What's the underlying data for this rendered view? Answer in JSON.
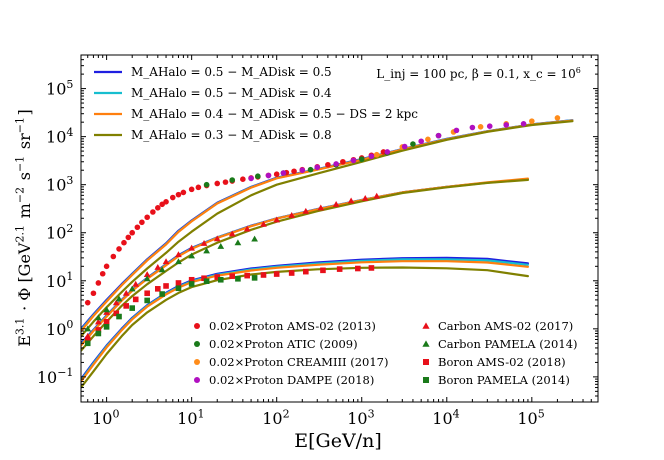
{
  "chart_data": {
    "type": "line",
    "title": "",
    "xlabel": "E[GeV/n]",
    "ylabel": "E^{3.1} · Φ [GeV^{2.1} m^{-2} s^{-1} sr^{-1}]",
    "x_scale": "log",
    "y_scale": "log",
    "xlim": [
      0.5,
      600000
    ],
    "ylim": [
      0.03,
      500000
    ],
    "x_ticks": [
      1,
      10,
      100,
      1000,
      10000,
      100000
    ],
    "x_tick_labels": [
      "10^0",
      "10^1",
      "10^2",
      "10^3",
      "10^4",
      "10^5"
    ],
    "y_ticks": [
      0.1,
      1,
      10,
      100,
      1000,
      10000,
      100000
    ],
    "y_tick_labels": [
      "10^-1",
      "10^0",
      "10^1",
      "10^2",
      "10^3",
      "10^4",
      "10^5"
    ],
    "annotation": "L_inj = 100 pc, β = 0.1, x_c = 10^6",
    "model_legend": [
      {
        "label": "M_AHalo = 0.5 − M_ADisk = 0.5",
        "color": "#1f1fe0"
      },
      {
        "label": "M_AHalo = 0.5 − M_ADisk = 0.4",
        "color": "#17becf"
      },
      {
        "label": "M_AHalo = 0.4 − M_ADisk = 0.5 − DS = 2 kpc",
        "color": "#ff7f0e"
      },
      {
        "label": "M_AHalo = 0.3 − M_ADisk = 0.8",
        "color": "#808000"
      }
    ],
    "data_legend": [
      {
        "label": "0.02×Proton AMS-02 (2013)",
        "color": "#e8101a",
        "marker": "circle"
      },
      {
        "label": "0.02×Proton ATIC (2009)",
        "color": "#1a7a1a",
        "marker": "circle"
      },
      {
        "label": "0.02×Proton CREAMIII (2017)",
        "color": "#ff8c1a",
        "marker": "circle"
      },
      {
        "label": "0.02×Proton DAMPE (2018)",
        "color": "#b010c0",
        "marker": "circle"
      },
      {
        "label": "Carbon AMS-02 (2017)",
        "color": "#e8101a",
        "marker": "triangle"
      },
      {
        "label": "Carbon PAMELA (2014)",
        "color": "#1a7a1a",
        "marker": "triangle"
      },
      {
        "label": "Boron AMS-02 (2018)",
        "color": "#e8101a",
        "marker": "square"
      },
      {
        "label": "Boron PAMELA (2014)",
        "color": "#1a7a1a",
        "marker": "square"
      }
    ],
    "model_series": [
      {
        "name": "proton-halo0.5-disk0.5",
        "group": "proton",
        "color": "#1f1fe0",
        "x": [
          0.5,
          0.7,
          1,
          1.5,
          2,
          3,
          5,
          7,
          10,
          20,
          50,
          100,
          300,
          1000,
          3000,
          10000,
          30000,
          100000,
          300000
        ],
        "y": [
          1.0,
          2.0,
          4.0,
          8.5,
          14,
          28,
          60,
          110,
          180,
          420,
          900,
          1400,
          2100,
          3400,
          5500,
          9000,
          13000,
          18000,
          22000
        ]
      },
      {
        "name": "proton-halo0.5-disk0.4",
        "group": "proton",
        "color": "#17becf",
        "x": [
          0.5,
          0.7,
          1,
          1.5,
          2,
          3,
          5,
          7,
          10,
          20,
          50,
          100,
          300,
          1000,
          3000,
          10000,
          30000,
          100000,
          300000
        ],
        "y": [
          0.95,
          1.9,
          3.8,
          8.1,
          13.5,
          27,
          58,
          106,
          175,
          410,
          880,
          1370,
          2070,
          3350,
          5450,
          8900,
          12900,
          17900,
          21800
        ]
      },
      {
        "name": "proton-halo0.4-disk0.5-DS2kpc",
        "group": "proton",
        "color": "#ff7f0e",
        "x": [
          0.5,
          0.7,
          1,
          1.5,
          2,
          3,
          5,
          7,
          10,
          20,
          50,
          100,
          300,
          1000,
          3000,
          10000,
          30000,
          100000,
          300000
        ],
        "y": [
          0.9,
          1.85,
          3.7,
          8.0,
          13.2,
          26.5,
          57,
          104,
          172,
          405,
          870,
          1360,
          2050,
          3300,
          5400,
          8800,
          12800,
          17800,
          21600
        ]
      },
      {
        "name": "proton-halo0.3-disk0.8",
        "group": "proton",
        "color": "#808000",
        "x": [
          0.5,
          0.7,
          1,
          1.5,
          2,
          3,
          5,
          7,
          10,
          20,
          50,
          100,
          300,
          1000,
          3000,
          10000,
          30000,
          100000,
          300000
        ],
        "y": [
          0.7,
          1.4,
          2.8,
          5.8,
          9.5,
          18,
          38,
          65,
          105,
          250,
          600,
          1000,
          1700,
          3000,
          5100,
          8600,
          12600,
          17500,
          21000
        ]
      },
      {
        "name": "carbon-halo0.5-disk0.5",
        "group": "carbon",
        "color": "#1f1fe0",
        "x": [
          0.5,
          0.7,
          1,
          1.5,
          2,
          3,
          5,
          7,
          10,
          20,
          50,
          100,
          300,
          1000,
          3000,
          10000,
          30000,
          90000
        ],
        "y": [
          0.5,
          0.95,
          1.9,
          4.0,
          6.5,
          11.5,
          22,
          34,
          48,
          80,
          140,
          200,
          310,
          480,
          690,
          900,
          1100,
          1300
        ]
      },
      {
        "name": "carbon-halo0.5-disk0.4",
        "group": "carbon",
        "color": "#17becf",
        "x": [
          0.5,
          0.7,
          1,
          1.5,
          2,
          3,
          5,
          7,
          10,
          20,
          50,
          100,
          300,
          1000,
          3000,
          10000,
          30000,
          90000
        ],
        "y": [
          0.47,
          0.92,
          1.85,
          3.9,
          6.3,
          11.2,
          21.5,
          33,
          47,
          79,
          138,
          198,
          308,
          478,
          688,
          898,
          1098,
          1295
        ]
      },
      {
        "name": "carbon-halo0.4-disk0.5-DS2kpc",
        "group": "carbon",
        "color": "#ff7f0e",
        "x": [
          0.5,
          0.7,
          1,
          1.5,
          2,
          3,
          5,
          7,
          10,
          20,
          50,
          100,
          300,
          1000,
          3000,
          10000,
          30000,
          90000
        ],
        "y": [
          0.45,
          0.9,
          1.8,
          3.85,
          6.2,
          11,
          21,
          32.5,
          46,
          78,
          137,
          197,
          306,
          476,
          690,
          905,
          1120,
          1340
        ]
      },
      {
        "name": "carbon-halo0.3-disk0.8",
        "group": "carbon",
        "color": "#808000",
        "x": [
          0.5,
          0.7,
          1,
          1.5,
          2,
          3,
          5,
          7,
          10,
          20,
          50,
          100,
          300,
          1000,
          3000,
          10000,
          30000,
          90000
        ],
        "y": [
          0.35,
          0.7,
          1.4,
          3.0,
          4.8,
          8.5,
          16,
          24,
          35,
          62,
          115,
          170,
          280,
          450,
          670,
          880,
          1090,
          1260
        ]
      },
      {
        "name": "boron-halo0.5-disk0.5",
        "group": "boron",
        "color": "#1f1fe0",
        "x": [
          0.5,
          0.7,
          1,
          1.5,
          2,
          3,
          5,
          7,
          10,
          20,
          50,
          100,
          300,
          1000,
          3000,
          10000,
          30000,
          90000
        ],
        "y": [
          0.09,
          0.2,
          0.45,
          1.0,
          1.7,
          3.1,
          5.6,
          7.8,
          10.2,
          14.0,
          18.0,
          20.5,
          24,
          27.5,
          29.5,
          30,
          28.5,
          23
        ]
      },
      {
        "name": "boron-halo0.5-disk0.4",
        "group": "boron",
        "color": "#17becf",
        "x": [
          0.5,
          0.7,
          1,
          1.5,
          2,
          3,
          5,
          7,
          10,
          20,
          50,
          100,
          300,
          1000,
          3000,
          10000,
          30000,
          90000
        ],
        "y": [
          0.085,
          0.19,
          0.43,
          0.96,
          1.63,
          3.0,
          5.4,
          7.5,
          9.8,
          13.4,
          17.2,
          19.6,
          22.8,
          26,
          27.8,
          28,
          26.5,
          21.5
        ]
      },
      {
        "name": "boron-halo0.4-disk0.5-DS2kpc",
        "group": "boron",
        "color": "#ff7f0e",
        "x": [
          0.5,
          0.7,
          1,
          1.5,
          2,
          3,
          5,
          7,
          10,
          20,
          50,
          100,
          300,
          1000,
          3000,
          10000,
          30000,
          90000
        ],
        "y": [
          0.08,
          0.18,
          0.41,
          0.93,
          1.58,
          2.9,
          5.2,
          7.2,
          9.4,
          12.8,
          16.4,
          18.6,
          21.5,
          24.2,
          25.6,
          25.6,
          24,
          19.5
        ]
      },
      {
        "name": "boron-halo0.3-disk0.8",
        "group": "boron",
        "color": "#808000",
        "x": [
          0.5,
          0.7,
          1,
          1.5,
          2,
          3,
          5,
          7,
          10,
          20,
          50,
          100,
          300,
          1000,
          3000,
          10000,
          30000,
          90000
        ],
        "y": [
          0.06,
          0.13,
          0.3,
          0.7,
          1.2,
          2.2,
          4.0,
          5.6,
          7.4,
          10.3,
          13.5,
          15.3,
          17.3,
          18.6,
          18.9,
          18.2,
          16.6,
          12.5
        ]
      }
    ],
    "data_series": [
      {
        "name": "0.02×Proton AMS-02 (2013)",
        "marker": "circle",
        "color": "#e8101a",
        "x": [
          0.6,
          0.7,
          0.8,
          0.9,
          1.0,
          1.2,
          1.4,
          1.6,
          1.8,
          2.0,
          2.3,
          2.6,
          3.0,
          3.5,
          4.0,
          4.5,
          5.0,
          6.0,
          7.0,
          8.0,
          10,
          12,
          15,
          20,
          25,
          30,
          40,
          50,
          60,
          80,
          100,
          130,
          160,
          200,
          300,
          400,
          600,
          800,
          1000,
          1300,
          1800
        ],
        "y": [
          3.5,
          5.5,
          9,
          14,
          20,
          32,
          46,
          62,
          80,
          100,
          130,
          165,
          210,
          270,
          330,
          390,
          440,
          540,
          620,
          690,
          800,
          880,
          960,
          1060,
          1130,
          1190,
          1300,
          1380,
          1450,
          1560,
          1650,
          1780,
          1900,
          2050,
          2350,
          2600,
          3000,
          3300,
          3600,
          4100,
          4800
        ]
      },
      {
        "name": "0.02×Proton ATIC (2009)",
        "marker": "circle",
        "color": "#1a7a1a",
        "x": [
          15,
          30,
          60,
          120,
          250,
          500,
          1000,
          2000,
          4000,
          8000
        ],
        "y": [
          1000,
          1250,
          1500,
          1750,
          2050,
          2600,
          3400,
          4600,
          7000,
          10500
        ]
      },
      {
        "name": "0.02×Proton CREAMIII (2017)",
        "marker": "circle",
        "color": "#ff8c1a",
        "x": [
          1500,
          3000,
          6000,
          12000,
          25000,
          50000,
          100000,
          200000
        ],
        "y": [
          4200,
          6100,
          8800,
          12500,
          16000,
          18500,
          21000,
          24500
        ]
      },
      {
        "name": "0.02×Proton DAMPE (2018)",
        "marker": "circle",
        "color": "#b010c0",
        "x": [
          50,
          80,
          120,
          200,
          300,
          500,
          800,
          1300,
          2000,
          3200,
          5000,
          8000,
          13000,
          20000,
          32000,
          50000,
          80000
        ],
        "y": [
          1350,
          1550,
          1750,
          2000,
          2300,
          2700,
          3200,
          3900,
          4800,
          6200,
          8000,
          10500,
          13500,
          15500,
          16500,
          17500,
          18500
        ]
      },
      {
        "name": "Carbon AMS-02 (2017)",
        "marker": "triangle",
        "color": "#e8101a",
        "x": [
          0.6,
          0.8,
          1.0,
          1.3,
          1.7,
          2.2,
          3.0,
          4.0,
          5.0,
          7.0,
          10,
          14,
          20,
          30,
          45,
          70,
          100,
          150,
          220,
          330,
          500,
          750,
          1100,
          1500
        ],
        "y": [
          0.7,
          1.4,
          2.2,
          3.5,
          5.5,
          8.5,
          13.5,
          19,
          25,
          35,
          48,
          60,
          75,
          95,
          120,
          150,
          185,
          230,
          280,
          330,
          390,
          460,
          520,
          580
        ]
      },
      {
        "name": "Carbon PAMELA (2014)",
        "marker": "triangle",
        "color": "#1a7a1a",
        "x": [
          0.6,
          0.8,
          1.0,
          1.4,
          2.0,
          3.0,
          4.5,
          7,
          10,
          15,
          22,
          35,
          55
        ],
        "y": [
          1.0,
          1.7,
          2.5,
          4.2,
          6.8,
          11,
          17,
          25,
          33,
          42,
          52,
          62,
          74
        ]
      },
      {
        "name": "Boron AMS-02 (2018)",
        "marker": "square",
        "color": "#e8101a",
        "x": [
          0.6,
          0.8,
          1.0,
          1.3,
          1.7,
          2.2,
          3.0,
          4.0,
          5.0,
          7,
          10,
          14,
          20,
          30,
          45,
          70,
          100,
          150,
          220,
          350,
          550,
          900,
          1300
        ],
        "y": [
          0.6,
          0.95,
          1.4,
          2.1,
          3.0,
          4.1,
          5.5,
          6.8,
          7.8,
          9.0,
          10.5,
          11.3,
          12.0,
          12.5,
          12.8,
          13.2,
          13.8,
          14.5,
          15.5,
          16.5,
          17.5,
          18.0,
          18.5
        ]
      },
      {
        "name": "Boron PAMELA (2014)",
        "marker": "square",
        "color": "#1a7a1a",
        "x": [
          0.6,
          0.8,
          1.0,
          1.4,
          2.0,
          3.0,
          4.5,
          7,
          10,
          15,
          22,
          35,
          55
        ],
        "y": [
          0.5,
          0.8,
          1.1,
          1.8,
          2.7,
          3.9,
          5.3,
          7.0,
          8.6,
          9.8,
          10.5,
          11.0,
          11.5
        ]
      }
    ]
  }
}
